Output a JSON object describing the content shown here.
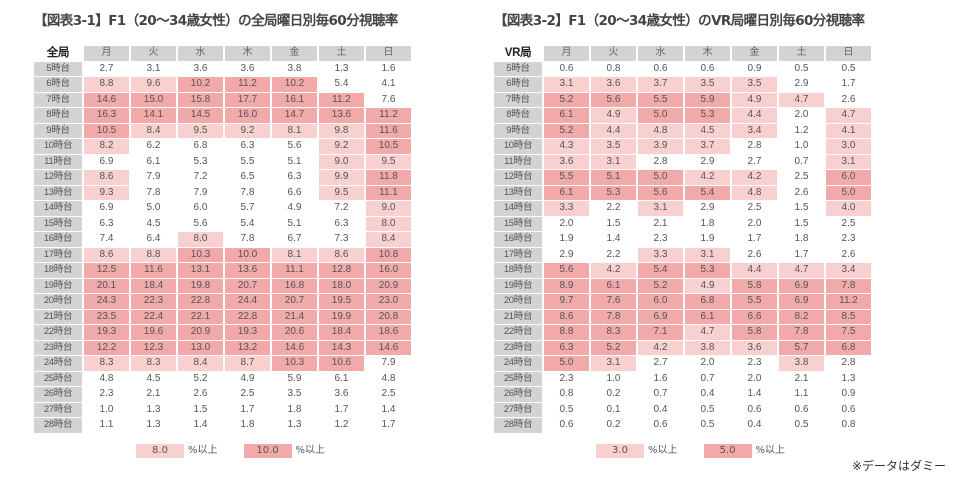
{
  "colors": {
    "header_gray": "#d3d3d3",
    "level1": "#f8d0d0",
    "level2": "#f1a9a9"
  },
  "days": [
    "月",
    "火",
    "水",
    "木",
    "金",
    "土",
    "日"
  ],
  "hours": [
    "5時台",
    "6時台",
    "7時台",
    "8時台",
    "9時台",
    "10時台",
    "11時台",
    "12時台",
    "13時台",
    "14時台",
    "15時台",
    "16時台",
    "17時台",
    "18時台",
    "19時台",
    "20時台",
    "21時台",
    "22時台",
    "23時台",
    "24時台",
    "25時台",
    "26時台",
    "27時台",
    "28時台"
  ],
  "tables": [
    {
      "title": "【図表3-1】F1（20〜34歳女性）の全局曜日別毎60分視聴率",
      "corner": "全局",
      "thresholds": [
        8.0,
        10.0
      ],
      "legend": [
        {
          "value": "8.0",
          "suffix": "%以上"
        },
        {
          "value": "10.0",
          "suffix": "%以上"
        }
      ],
      "rows": [
        [
          "2.7",
          "3.1",
          "3.6",
          "3.6",
          "3.8",
          "1.3",
          "1.6"
        ],
        [
          "8.8",
          "9.6",
          "10.2",
          "11.2",
          "10.2",
          "5.4",
          "4.1"
        ],
        [
          "14.6",
          "15.0",
          "15.8",
          "17.7",
          "16.1",
          "11.2",
          "7.6"
        ],
        [
          "16.3",
          "14.1",
          "14.5",
          "16.0",
          "14.7",
          "13.6",
          "11.2"
        ],
        [
          "10.5",
          "8.4",
          "9.5",
          "9.2",
          "8.1",
          "9.8",
          "11.6"
        ],
        [
          "8.2",
          "6.2",
          "6.8",
          "6.3",
          "5.6",
          "9.2",
          "10.5"
        ],
        [
          "6.9",
          "6.1",
          "5.3",
          "5.5",
          "5.1",
          "9.0",
          "9.5"
        ],
        [
          "8.6",
          "7.9",
          "7.2",
          "6.5",
          "6.3",
          "9.9",
          "11.8"
        ],
        [
          "9.3",
          "7.8",
          "7.9",
          "7.8",
          "6.6",
          "9.5",
          "11.1"
        ],
        [
          "6.9",
          "5.0",
          "6.0",
          "5.7",
          "4.9",
          "7.2",
          "9.0"
        ],
        [
          "6.3",
          "4.5",
          "5.6",
          "5.4",
          "5.1",
          "6.3",
          "8.0"
        ],
        [
          "7.4",
          "6.4",
          "8.0",
          "7.8",
          "6.7",
          "7.3",
          "8.4"
        ],
        [
          "8.6",
          "8.8",
          "10.3",
          "10.0",
          "8.1",
          "8.6",
          "10.8"
        ],
        [
          "12.5",
          "11.6",
          "13.1",
          "13.6",
          "11.1",
          "12.8",
          "16.0"
        ],
        [
          "20.1",
          "18.4",
          "19.8",
          "20.7",
          "16.8",
          "18.0",
          "20.9"
        ],
        [
          "24.3",
          "22.3",
          "22.8",
          "24.4",
          "20.7",
          "19.5",
          "23.0"
        ],
        [
          "23.5",
          "22.4",
          "22.1",
          "22.8",
          "21.4",
          "19.9",
          "20.8"
        ],
        [
          "19.3",
          "19.6",
          "20.9",
          "19.3",
          "20.6",
          "18.4",
          "18.6"
        ],
        [
          "12.2",
          "12.3",
          "13.0",
          "13.2",
          "14.6",
          "14.3",
          "14.6"
        ],
        [
          "8.3",
          "8.3",
          "8.4",
          "8.7",
          "10.3",
          "10.6",
          "7.9"
        ],
        [
          "4.8",
          "4.5",
          "5.2",
          "4.9",
          "5.9",
          "6.1",
          "4.8"
        ],
        [
          "2.3",
          "2.1",
          "2.6",
          "2.5",
          "3.5",
          "3.6",
          "2.5"
        ],
        [
          "1.0",
          "1.3",
          "1.5",
          "1.7",
          "1.8",
          "1.7",
          "1.4"
        ],
        [
          "1.1",
          "1.3",
          "1.4",
          "1.8",
          "1.3",
          "1.2",
          "1.7"
        ]
      ]
    },
    {
      "title": "【図表3-2】F1（20〜34歳女性）のVR局曜日別毎60分視聴率",
      "corner": "VR局",
      "thresholds": [
        3.0,
        5.0
      ],
      "legend": [
        {
          "value": "3.0",
          "suffix": "%以上"
        },
        {
          "value": "5.0",
          "suffix": "%以上"
        }
      ],
      "rows": [
        [
          "0.6",
          "0.8",
          "0.6",
          "0.6",
          "0.9",
          "0.5",
          "0.5"
        ],
        [
          "3.1",
          "3.6",
          "3.7",
          "3.5",
          "3.5",
          "2.9",
          "1.7"
        ],
        [
          "5.2",
          "5.6",
          "5.5",
          "5.9",
          "4.9",
          "4.7",
          "2.6"
        ],
        [
          "6.1",
          "4.9",
          "5.0",
          "5.3",
          "4.4",
          "2.0",
          "4.7"
        ],
        [
          "5.2",
          "4.4",
          "4.8",
          "4.5",
          "3.4",
          "1.2",
          "4.1"
        ],
        [
          "4.3",
          "3.5",
          "3.9",
          "3.7",
          "2.8",
          "1.0",
          "3.0"
        ],
        [
          "3.6",
          "3.1",
          "2.8",
          "2.9",
          "2.7",
          "0.7",
          "3.1"
        ],
        [
          "5.5",
          "5.1",
          "5.0",
          "4.2",
          "4.2",
          "2.5",
          "6.0"
        ],
        [
          "6.1",
          "5.3",
          "5.6",
          "5.4",
          "4.8",
          "2.6",
          "5.0"
        ],
        [
          "3.3",
          "2.2",
          "3.1",
          "2.9",
          "2.5",
          "1.5",
          "4.0"
        ],
        [
          "2.0",
          "1.5",
          "2.1",
          "1.8",
          "2.0",
          "1.5",
          "2.5"
        ],
        [
          "1.9",
          "1.4",
          "2.3",
          "1.9",
          "1.7",
          "1.8",
          "2.3"
        ],
        [
          "2.9",
          "2.2",
          "3.3",
          "3.1",
          "2.6",
          "1.7",
          "2.6"
        ],
        [
          "5.6",
          "4.2",
          "5.4",
          "5.3",
          "4.4",
          "4.7",
          "3.4"
        ],
        [
          "8.9",
          "6.1",
          "5.2",
          "4.9",
          "5.8",
          "6.9",
          "7.8"
        ],
        [
          "9.7",
          "7.6",
          "6.0",
          "6.8",
          "5.5",
          "6.9",
          "11.2"
        ],
        [
          "8.6",
          "7.8",
          "6.9",
          "6.1",
          "6.6",
          "8.2",
          "8.5"
        ],
        [
          "8.8",
          "8.3",
          "7.1",
          "4.7",
          "5.8",
          "7.8",
          "7.5"
        ],
        [
          "6.3",
          "5.2",
          "4.2",
          "3.8",
          "3.6",
          "5.7",
          "6.8"
        ],
        [
          "5.0",
          "3.1",
          "2.7",
          "2.0",
          "2.3",
          "3.8",
          "2.8"
        ],
        [
          "2.3",
          "1.0",
          "1.6",
          "0.7",
          "2.0",
          "2.1",
          "1.3"
        ],
        [
          "0.8",
          "0.2",
          "0.7",
          "0.4",
          "1.4",
          "1.1",
          "0.9"
        ],
        [
          "0.5",
          "0.1",
          "0.4",
          "0.5",
          "0.6",
          "0.6",
          "0.6"
        ],
        [
          "0.6",
          "0.2",
          "0.6",
          "0.5",
          "0.4",
          "0.5",
          "0.8"
        ]
      ]
    }
  ],
  "footnote": "※データはダミー"
}
